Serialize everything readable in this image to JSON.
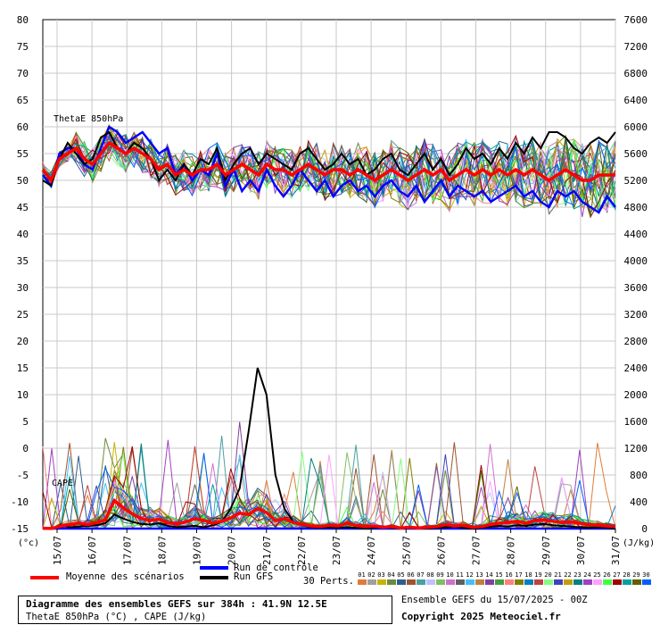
{
  "chart_data": {
    "type": "line",
    "annotations": {
      "thetae_label": "ThetaE 850hPa",
      "cape_label": "CAPE"
    },
    "left_axis": {
      "unit_label": "(°c)",
      "ticks": [
        "80",
        "75",
        "70",
        "65",
        "60",
        "55",
        "50",
        "45",
        "40",
        "35",
        "30",
        "25",
        "20",
        "15",
        "10",
        "5",
        "0",
        "-5",
        "-10",
        "-15"
      ],
      "range": [
        -15,
        80
      ]
    },
    "right_axis": {
      "unit_label": "(J/kg)",
      "ticks": [
        "7600",
        "7200",
        "6800",
        "6400",
        "6000",
        "5600",
        "5200",
        "4800",
        "4400",
        "4000",
        "3600",
        "3200",
        "2800",
        "2400",
        "2000",
        "1600",
        "1200",
        "800",
        "400",
        "0"
      ],
      "range": [
        0,
        7600
      ]
    },
    "x_axis": {
      "ticks": [
        "15/07",
        "16/07",
        "17/07",
        "18/07",
        "19/07",
        "20/07",
        "21/07",
        "22/07",
        "23/07",
        "24/07",
        "25/07",
        "26/07",
        "27/07",
        "28/07",
        "29/07",
        "30/07",
        "31/07"
      ]
    },
    "grid": true,
    "series_colors": {
      "mean": "#ff0000",
      "control": "#0000ff",
      "gfs": "#000000",
      "perturbations": [
        "#e07b39",
        "#a0a0a0",
        "#c8b400",
        "#6d8b3e",
        "#2e5e8e",
        "#a0522d",
        "#4aa0a0",
        "#c0c0ff",
        "#80c060",
        "#d070d0",
        "#606060",
        "#40c0ff",
        "#c08040",
        "#8040a0",
        "#40a040",
        "#ff8080",
        "#808000",
        "#0080c0",
        "#c04040",
        "#80ff80",
        "#4040c0",
        "#c0a000",
        "#008080",
        "#a040c0",
        "#ffa0ff",
        "#40ff40",
        "#a00000",
        "#00a0a0",
        "#606000",
        "#0060ff"
      ]
    },
    "series": [
      {
        "name": "Moyenne des scénarios",
        "thetae": [
          52,
          50,
          54,
          55,
          56,
          54,
          53,
          55,
          57,
          56,
          55,
          56,
          55,
          54,
          52,
          53,
          51,
          52,
          51,
          52,
          52,
          53,
          51,
          52,
          53,
          52,
          51,
          53,
          52,
          52,
          51,
          52,
          53,
          52,
          51,
          52,
          52,
          51,
          52,
          51,
          50,
          51,
          52,
          51,
          50,
          51,
          52,
          51,
          52,
          50,
          51,
          52,
          51,
          52,
          51,
          52,
          51,
          52,
          51,
          52,
          51,
          50,
          51,
          52,
          51,
          50,
          50,
          51,
          51,
          51
        ],
        "cape": [
          5,
          2,
          40,
          60,
          80,
          60,
          90,
          130,
          420,
          310,
          220,
          150,
          120,
          140,
          90,
          70,
          100,
          150,
          120,
          80,
          110,
          160,
          230,
          210,
          300,
          240,
          120,
          150,
          90,
          60,
          40,
          30,
          50,
          40,
          80,
          50,
          30,
          40,
          20,
          30,
          10,
          20,
          10,
          20,
          30,
          60,
          40,
          50,
          20,
          30,
          60,
          80,
          90,
          110,
          80,
          120,
          130,
          110,
          90,
          100,
          80,
          60,
          50,
          40,
          30
        ]
      },
      {
        "name": "Run de contrôle",
        "thetae": [
          51,
          49,
          55,
          56,
          56,
          53,
          52,
          56,
          60,
          59,
          57,
          58,
          59,
          57,
          55,
          56,
          51,
          53,
          50,
          52,
          51,
          55,
          49,
          52,
          48,
          50,
          48,
          52,
          49,
          47,
          49,
          52,
          50,
          48,
          50,
          47,
          49,
          50,
          48,
          49,
          47,
          49,
          50,
          48,
          47,
          49,
          46,
          48,
          50,
          47,
          49,
          48,
          47,
          48,
          46,
          47,
          48,
          49,
          47,
          48,
          46,
          45,
          48,
          47,
          48,
          46,
          45,
          44,
          47,
          45
        ],
        "cape": [
          0,
          0,
          0,
          0,
          0,
          0,
          0,
          0,
          0,
          0,
          0,
          0,
          0,
          0,
          0,
          0,
          0,
          0,
          0,
          0,
          0,
          0,
          0,
          0,
          0,
          0,
          0,
          0,
          0,
          0,
          0,
          0,
          0,
          0,
          0,
          0,
          0,
          0,
          0,
          0,
          0,
          0,
          0,
          0,
          0,
          0,
          0,
          0,
          0,
          0,
          0,
          0,
          0,
          0,
          0,
          0,
          0,
          0,
          0,
          0,
          0,
          0,
          0,
          0,
          0
        ]
      },
      {
        "name": "Run GFS",
        "thetae": [
          50,
          49,
          54,
          57,
          55,
          53,
          54,
          58,
          59,
          56,
          55,
          57,
          56,
          54,
          50,
          52,
          50,
          53,
          51,
          54,
          53,
          56,
          50,
          53,
          55,
          56,
          53,
          55,
          54,
          53,
          52,
          55,
          56,
          54,
          52,
          53,
          55,
          53,
          54,
          51,
          52,
          54,
          55,
          52,
          51,
          53,
          55,
          52,
          54,
          51,
          53,
          56,
          54,
          55,
          53,
          56,
          54,
          57,
          55,
          58,
          56,
          59,
          59,
          58,
          56,
          55,
          57,
          58,
          57,
          59
        ],
        "cape": [
          0,
          0,
          60,
          20,
          30,
          40,
          50,
          80,
          210,
          150,
          100,
          70,
          60,
          80,
          40,
          20,
          30,
          40,
          20,
          50,
          100,
          300,
          600,
          1450,
          2400,
          2000,
          800,
          300,
          100,
          50,
          20,
          10,
          20,
          10,
          20,
          10,
          0,
          10,
          20,
          10,
          0,
          10,
          0,
          0,
          10,
          20,
          30,
          10,
          0,
          10,
          30,
          40,
          30,
          50,
          40,
          60,
          70,
          50,
          40,
          30,
          20,
          10,
          20,
          10,
          0
        ]
      }
    ]
  },
  "legend": {
    "mean_label": "Moyenne des scénarios",
    "control_label": "Run de contrôle",
    "gfs_label": "Run GFS",
    "perts_label": "30 Perts.",
    "perts_numbers": [
      "01",
      "02",
      "03",
      "04",
      "05",
      "06",
      "07",
      "08",
      "09",
      "10",
      "11",
      "12",
      "13",
      "14",
      "15",
      "16",
      "17",
      "18",
      "19",
      "20",
      "21",
      "22",
      "23",
      "24",
      "25",
      "26",
      "27",
      "28",
      "29",
      "30"
    ]
  },
  "info_box": {
    "title": "Diagramme des ensembles GEFS sur 384h : 41.9N 12.5E",
    "subtitle": "ThetaE 850hPa (°C) , CAPE (J/kg)"
  },
  "footer": {
    "run_label": "Ensemble GEFS du 15/07/2025 - 00Z",
    "copyright": "Copyright 2025 Meteociel.fr"
  }
}
